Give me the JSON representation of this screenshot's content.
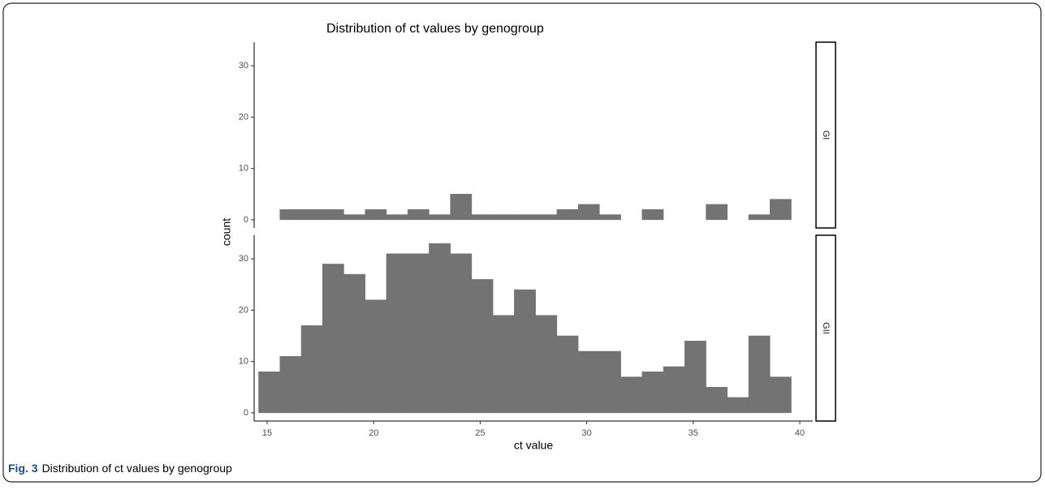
{
  "chart_data": {
    "type": "histogram",
    "title": "Distribution of ct values by genogroup",
    "x_label": "ct value",
    "y_label": "count",
    "bins": [
      14.6,
      15.6,
      16.6,
      17.6,
      18.6,
      19.6,
      20.6,
      21.6,
      22.6,
      23.6,
      24.6,
      25.6,
      26.6,
      27.6,
      28.6,
      29.6,
      30.6,
      31.6,
      32.6,
      33.6,
      34.6,
      35.6,
      36.6,
      37.6,
      38.6,
      39.6
    ],
    "panels": [
      {
        "name": "GI",
        "values": [
          0,
          2,
          2,
          2,
          1,
          2,
          1,
          2,
          1,
          5,
          1,
          1,
          1,
          1,
          2,
          3,
          1,
          0,
          2,
          0,
          0,
          3,
          0,
          1,
          4
        ]
      },
      {
        "name": "GII",
        "values": [
          8,
          11,
          17,
          29,
          27,
          22,
          31,
          31,
          33,
          31,
          26,
          19,
          24,
          19,
          15,
          12,
          12,
          7,
          8,
          9,
          14,
          5,
          3,
          15,
          7
        ]
      }
    ],
    "color": "#737373",
    "xlim": [
      14.39,
      40.61
    ],
    "xticks": [
      15,
      20,
      25,
      30,
      35,
      40
    ],
    "ylim": [
      -1.6,
      34.6
    ],
    "yticks": [
      0,
      10,
      20,
      30
    ],
    "grid": false
  },
  "caption": {
    "label": "Fig. 3",
    "text": "Distribution of ct values by genogroup"
  }
}
